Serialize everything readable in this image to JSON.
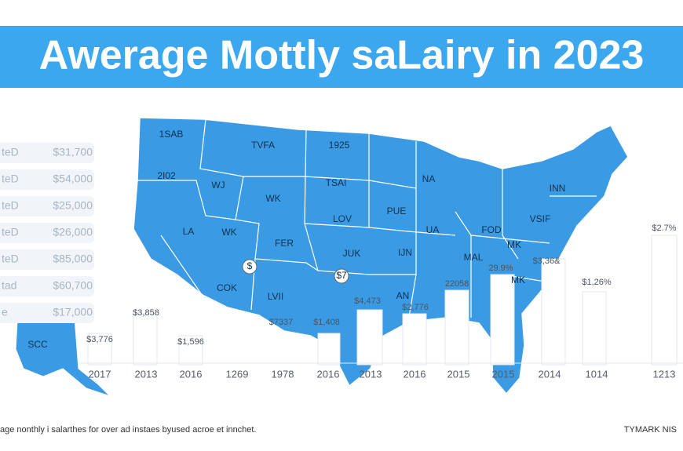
{
  "header": {
    "title": "Awerage Mottly saLairy in 2023"
  },
  "sidebar": {
    "rows": [
      {
        "label": "teD",
        "value": "$31,700"
      },
      {
        "label": "teD",
        "value": "$54,000"
      },
      {
        "label": "teD",
        "value": "$25,000"
      },
      {
        "label": "teD",
        "value": "$26,000"
      },
      {
        "label": "teD",
        "value": "$85,000"
      },
      {
        "label": "tad",
        "value": "$60,700"
      },
      {
        "label": "e",
        "value": "$17,000"
      }
    ]
  },
  "map": {
    "labels": [
      "1SAB",
      "TVFA",
      "1925",
      "2I02",
      "WJ",
      "WK",
      "TSAI",
      "NA",
      "INN",
      "LA",
      "WK",
      "PUE",
      "LOV",
      "UA",
      "FOD",
      "VSIF",
      "FER",
      "JUK",
      "IJN",
      "MAL",
      "MK",
      "COK",
      "LVII",
      "AN",
      "MK",
      "SCC",
      "$",
      "$7"
    ]
  },
  "annotations": [
    "$2.7%",
    "$3,36&",
    "$3,858",
    "$3,776",
    "$1,596",
    "$7337",
    "$1,408",
    "$4,473",
    "$2,776",
    "22058",
    "29.9%",
    "$1,26%"
  ],
  "axis": {
    "labels": [
      "2017",
      "2013",
      "2016",
      "1269",
      "1978",
      "2016",
      "2013",
      "2016",
      "2015",
      "2015",
      "2014",
      "1014",
      "1213"
    ]
  },
  "footer": {
    "caption": "age nonthly i salarthes for over ad instaes byused acroe et innchet.",
    "brand": "TYMARK NIS"
  }
}
